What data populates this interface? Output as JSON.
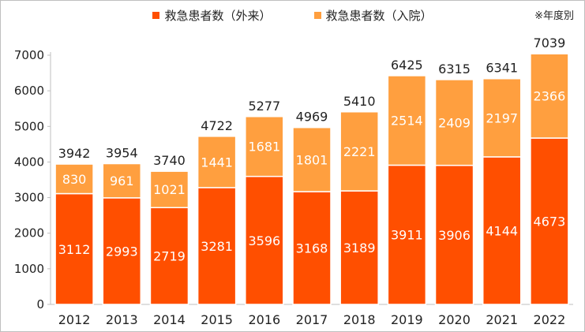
{
  "chart_data": {
    "type": "bar",
    "stacked": true,
    "categories": [
      "2012",
      "2013",
      "2014",
      "2015",
      "2016",
      "2017",
      "2018",
      "2019",
      "2020",
      "2021",
      "2022"
    ],
    "series": [
      {
        "name": "救急患者数（外来）",
        "color": "#ff4f00",
        "values": [
          3112,
          2993,
          2719,
          3281,
          3596,
          3168,
          3189,
          3911,
          3906,
          4144,
          4673
        ]
      },
      {
        "name": "救急患者数（入院）",
        "color": "#ff9f3f",
        "values": [
          830,
          961,
          1021,
          1441,
          1681,
          1801,
          2221,
          2514,
          2409,
          2197,
          2366
        ]
      }
    ],
    "totals": [
      3942,
      3954,
      3740,
      4722,
      5277,
      4969,
      5410,
      6425,
      6315,
      6341,
      7039
    ],
    "ylim": [
      0,
      7000
    ],
    "yticks": [
      0,
      1000,
      2000,
      3000,
      4000,
      5000,
      6000,
      7000
    ],
    "grid": false,
    "legend_position": "top-center",
    "note": "※年度別"
  }
}
